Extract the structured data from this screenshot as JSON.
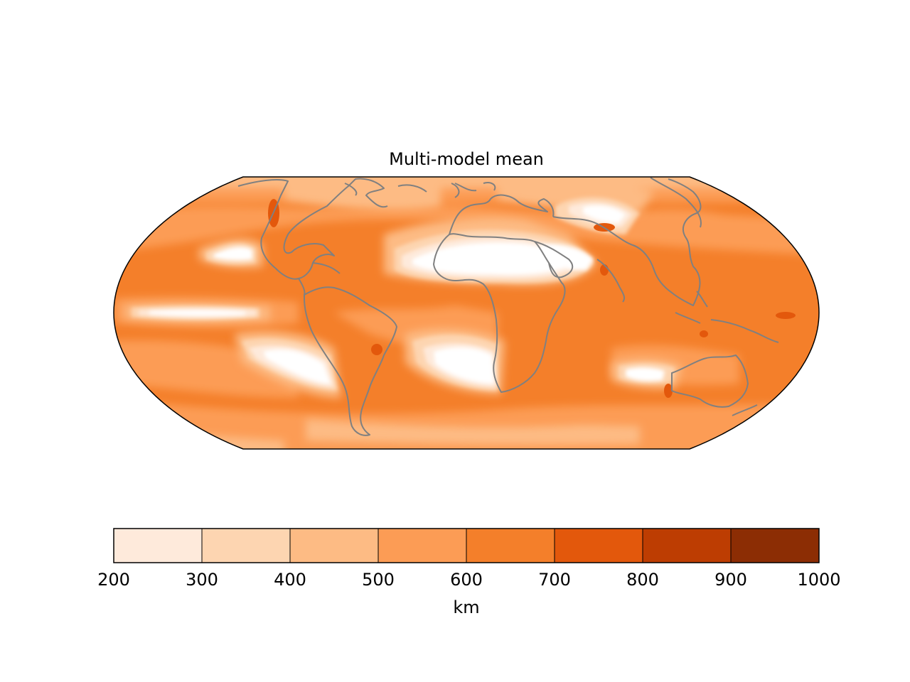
{
  "map": {
    "title": "Multi-model mean",
    "projection": "Robinson",
    "field": "multi-model mean",
    "coastline_color": "#808080",
    "background_color": "#ffffff"
  },
  "colorbar": {
    "label": "km",
    "ticks": [
      "200",
      "300",
      "400",
      "500",
      "600",
      "700",
      "800",
      "900",
      "1000"
    ],
    "levels": [
      {
        "range": [
          200,
          300
        ],
        "color": "#feeadb"
      },
      {
        "range": [
          300,
          400
        ],
        "color": "#fdd5b1"
      },
      {
        "range": [
          400,
          500
        ],
        "color": "#fdbb84"
      },
      {
        "range": [
          500,
          600
        ],
        "color": "#fc9c55"
      },
      {
        "range": [
          600,
          700
        ],
        "color": "#f47f2a"
      },
      {
        "range": [
          700,
          800
        ],
        "color": "#e3580c"
      },
      {
        "range": [
          800,
          900
        ],
        "color": "#bd3d02"
      },
      {
        "range": [
          900,
          1000
        ],
        "color": "#8c2d04"
      }
    ]
  }
}
